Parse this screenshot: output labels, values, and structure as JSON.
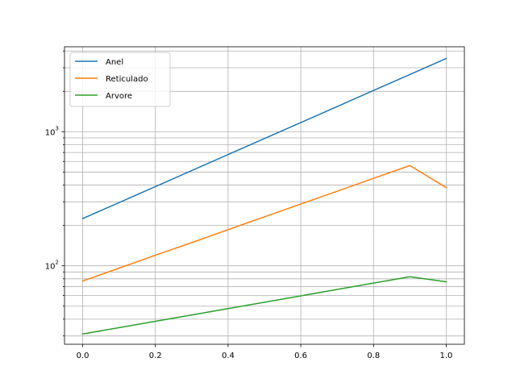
{
  "chart_data": {
    "type": "line",
    "title": "",
    "xlabel": "",
    "ylabel": "",
    "xscale": "linear",
    "yscale": "log",
    "xlim": [
      -0.05,
      1.05
    ],
    "ylim": [
      26,
      4300
    ],
    "grid": "both (major and minor)",
    "legend_position": "upper left",
    "x": [
      0.0,
      0.1,
      0.2,
      0.3,
      0.4,
      0.5,
      0.6,
      0.7,
      0.8,
      0.9,
      1.0
    ],
    "series": [
      {
        "name": "Anel",
        "color": "#1f77b4",
        "values": [
          225,
          296,
          390,
          513,
          676,
          890,
          1170,
          1540,
          2030,
          2670,
          3520
        ]
      },
      {
        "name": "Reticulado",
        "color": "#ff7f0e",
        "values": [
          77,
          96,
          120,
          149,
          186,
          232,
          289,
          360,
          449,
          559,
          383
        ]
      },
      {
        "name": "Arvore",
        "color": "#2ca02c",
        "values": [
          31,
          34.6,
          38.6,
          43.0,
          48.0,
          53.5,
          59.7,
          66.6,
          74.3,
          82.9,
          76
        ]
      }
    ],
    "xticks": [
      {
        "value": 0.0,
        "label": "0.0"
      },
      {
        "value": 0.2,
        "label": "0.2"
      },
      {
        "value": 0.4,
        "label": "0.4"
      },
      {
        "value": 0.6,
        "label": "0.6"
      },
      {
        "value": 0.8,
        "label": "0.8"
      },
      {
        "value": 1.0,
        "label": "1.0"
      }
    ],
    "yticks": [
      {
        "value": 100,
        "base": "10",
        "exp": "2"
      },
      {
        "value": 1000,
        "base": "10",
        "exp": "3"
      }
    ]
  }
}
